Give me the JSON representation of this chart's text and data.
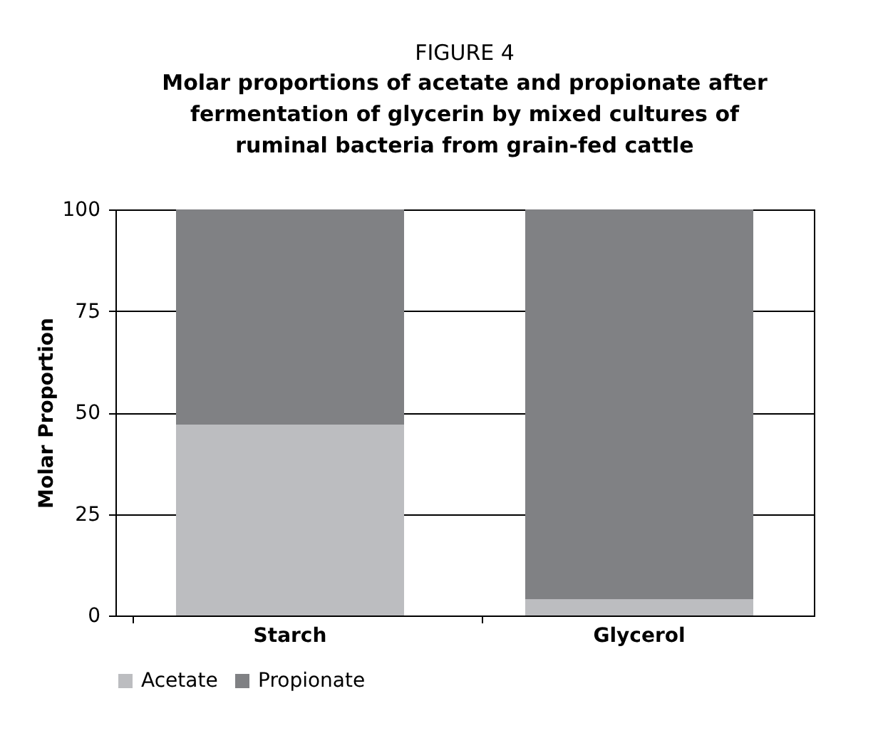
{
  "chart_data": {
    "type": "bar",
    "title": "FIGURE 4",
    "subtitle": "Molar proportions of acetate and propionate after\nfermentation of glycerin by mixed cultures of\nruminal bacteria from grain-fed cattle",
    "ylabel": "Molar Proportion",
    "categories": [
      "Starch",
      "Glycerol"
    ],
    "stacked": true,
    "series": [
      {
        "name": "Acetate",
        "color": "#bcbdc0",
        "values": [
          47,
          4
        ]
      },
      {
        "name": "Propionate",
        "color": "#808184",
        "values": [
          53,
          96
        ]
      }
    ],
    "ylim": [
      0,
      100
    ],
    "yticks": [
      0,
      25,
      50,
      75,
      100
    ],
    "grid": "y",
    "legend": "bottom"
  }
}
